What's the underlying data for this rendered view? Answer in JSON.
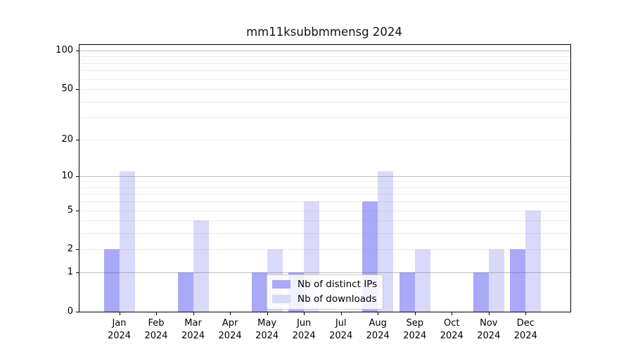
{
  "chart_data": {
    "type": "bar",
    "title": "mm11ksubbmmensg 2024",
    "categories": [
      "Jan 2024",
      "Feb 2024",
      "Mar 2024",
      "Apr 2024",
      "May 2024",
      "Jun 2024",
      "Jul 2024",
      "Aug 2024",
      "Sep 2024",
      "Oct 2024",
      "Nov 2024",
      "Dec 2024"
    ],
    "series": [
      {
        "name": "Nb of distinct IPs",
        "color": "#a9a9f7",
        "values": [
          2,
          0,
          1,
          0,
          1,
          1,
          0,
          6,
          1,
          0,
          1,
          2
        ]
      },
      {
        "name": "Nb of downloads",
        "color": "#d9d9f9",
        "values": [
          11,
          0,
          4,
          0,
          2,
          6,
          0,
          11,
          2,
          0,
          2,
          5
        ]
      }
    ],
    "yscale": "log1p",
    "ylim": [
      0,
      100
    ],
    "yticks": [
      0,
      1,
      2,
      5,
      10,
      20,
      50,
      100
    ],
    "grid": true,
    "legend_position": "lower center",
    "background": "#ffffff",
    "grid_major_color": "#b3b3b3",
    "grid_minor_color": "#e9e9e9"
  }
}
